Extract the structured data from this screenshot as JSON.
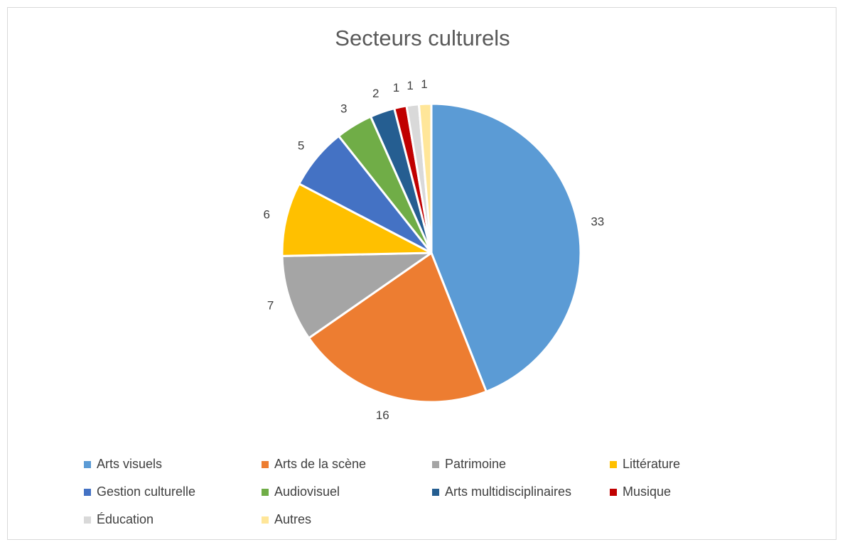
{
  "chart_data": {
    "type": "pie",
    "title": "Secteurs culturels",
    "categories": [
      "Arts visuels",
      "Arts de la scène",
      "Patrimoine",
      "Littérature",
      "Gestion culturelle",
      "Audiovisuel",
      "Arts multidisciplinaires",
      "Musique",
      "Éducation",
      "Autres"
    ],
    "values": [
      33,
      16,
      7,
      6,
      5,
      3,
      2,
      1,
      1,
      1
    ],
    "value_labels": [
      "33",
      "16",
      "7",
      "6",
      "5",
      "3",
      "2",
      "1",
      "1",
      "1"
    ],
    "colors": [
      "#5b9bd5",
      "#ed7d31",
      "#a5a5a5",
      "#ffc000",
      "#4472c4",
      "#70ad47",
      "#255e91",
      "#c00000",
      "#d9d9d9",
      "#ffe699"
    ],
    "slice_border_color": "#ffffff",
    "start": "12 o'clock, clockwise",
    "legend_placement": "bottom"
  }
}
